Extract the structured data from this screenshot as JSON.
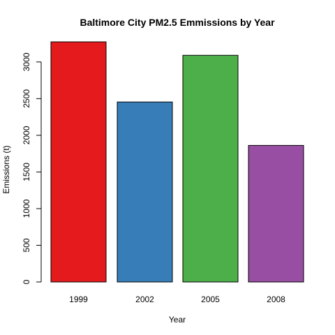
{
  "chart_data": {
    "type": "bar",
    "title": "Baltimore City PM2.5 Emmissions by Year",
    "xlabel": "Year",
    "ylabel": "Emissions (t)",
    "categories": [
      "1999",
      "2002",
      "2005",
      "2008"
    ],
    "values": [
      3274,
      2454,
      3091,
      1862
    ],
    "colors": [
      "#E41A1C",
      "#377EB8",
      "#4DAF4A",
      "#984EA3"
    ],
    "yticks": [
      0,
      500,
      1000,
      1500,
      2000,
      2500,
      3000
    ],
    "ylim": [
      0,
      3274
    ],
    "grid": false,
    "legend": "none"
  }
}
